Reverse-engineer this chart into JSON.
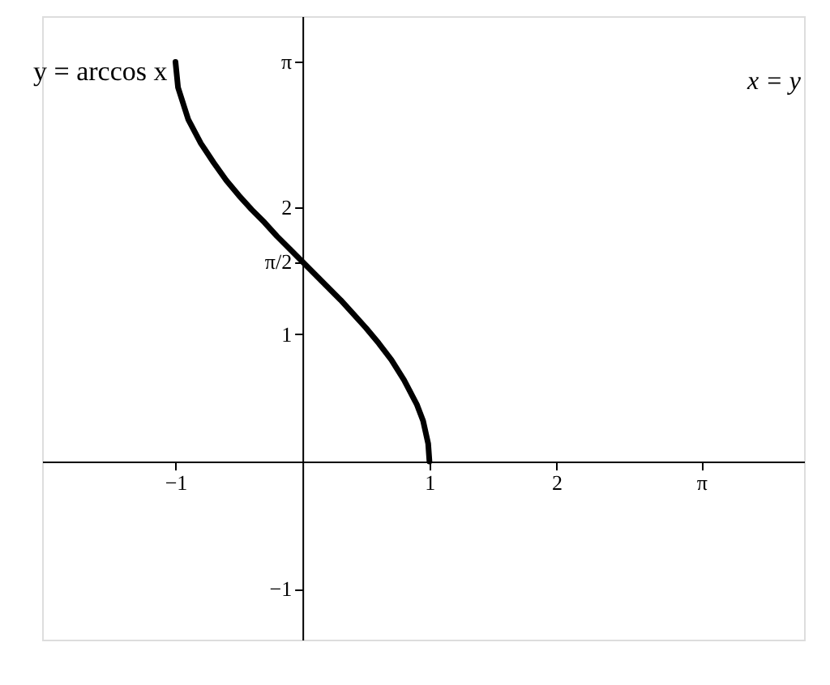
{
  "chart_data": {
    "type": "line",
    "x": [
      -1,
      -0.98,
      -0.9,
      -0.8,
      -0.7,
      -0.6,
      -0.5,
      -0.4,
      -0.3,
      -0.2,
      -0.1,
      0,
      0.1,
      0.2,
      0.3,
      0.4,
      0.5,
      0.6,
      0.7,
      0.8,
      0.9,
      0.95,
      0.99,
      1
    ],
    "series": [
      {
        "name": "y = arccos x",
        "color": "#000000",
        "values": [
          3.14,
          2.94,
          2.69,
          2.5,
          2.35,
          2.21,
          2.09,
          1.98,
          1.88,
          1.77,
          1.67,
          1.57,
          1.47,
          1.37,
          1.27,
          1.16,
          1.05,
          0.93,
          0.8,
          0.64,
          0.45,
          0.32,
          0.14,
          0
        ]
      }
    ],
    "annotations": [
      "x = y"
    ],
    "xlim": [
      -2.05,
      3.95
    ],
    "ylim": [
      -1.4,
      3.5
    ],
    "xticks": [
      -1,
      1,
      2,
      {
        "value": 3.14159,
        "label": "π"
      }
    ],
    "yticks": [
      -1,
      1,
      {
        "value": 1.5708,
        "label": "π/2"
      },
      2,
      {
        "value": 3.14159,
        "label": "π"
      }
    ],
    "grid": false,
    "marker": "none",
    "line_style": "solid"
  }
}
